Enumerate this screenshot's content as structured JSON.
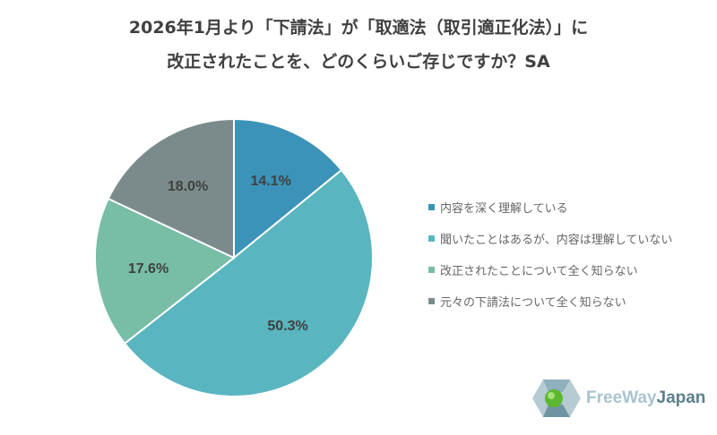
{
  "chart_data": {
    "type": "pie",
    "title": [
      "2026年1月より「下請法」が「取適法（取引適正化法）」に",
      "改正されたことを、どのくらいご存じですか？SA"
    ],
    "categories": [
      "内容を深く理解している",
      "聞いたことはあるが、内容は理解していない",
      "改正されたことについて全く知らない",
      "元々の下請法について全く知らない"
    ],
    "values": [
      14.1,
      50.3,
      17.6,
      18.0
    ],
    "labels": [
      "14.1%",
      "50.3%",
      "17.6%",
      "18.0%"
    ],
    "colors": [
      "#3b93b9",
      "#59b5c0",
      "#78bda6",
      "#7b8b8b"
    ],
    "start": "top",
    "direction": "clockwise",
    "legend": "right"
  },
  "logo": {
    "text_a": "FreeWay",
    "text_b": "Japan"
  }
}
